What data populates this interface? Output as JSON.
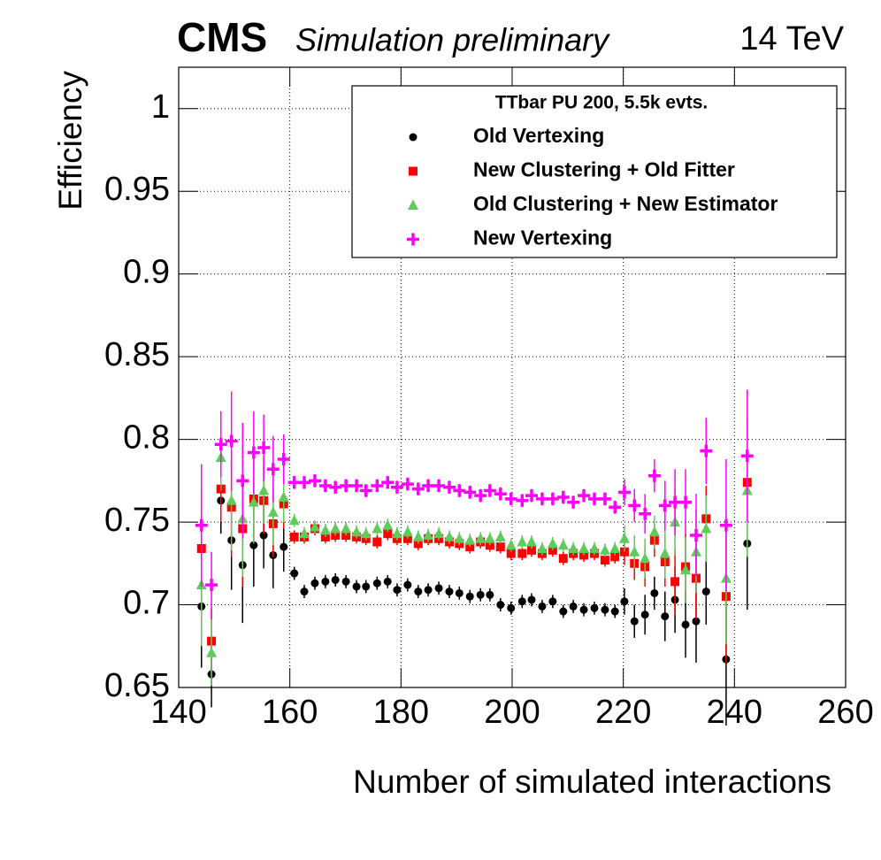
{
  "chart_data": {
    "type": "scatter",
    "title": "CMS",
    "subtitle": "Simulation preliminary",
    "annotation": "14 TeV",
    "x_label": "Number of simulated interactions",
    "y_label": "Efficiency",
    "legend_title": "TTbar PU 200, 5.5k evts.",
    "legend_position": "top-right",
    "grid": true,
    "xlim": [
      140,
      260
    ],
    "xticks": [
      140,
      160,
      180,
      200,
      220,
      240,
      260
    ],
    "ylim": [
      0.65,
      1.025
    ],
    "yticks": [
      0.65,
      0.7,
      0.75,
      0.8,
      0.85,
      0.9,
      0.95,
      1
    ],
    "x": [
      144.1,
      145.9,
      147.6,
      149.5,
      151.5,
      153.5,
      155.3,
      157.0,
      158.9,
      160.8,
      162.6,
      164.5,
      166.4,
      168.2,
      170.1,
      172.0,
      173.7,
      175.7,
      177.6,
      179.3,
      181.2,
      183.1,
      184.9,
      186.8,
      188.7,
      190.5,
      192.4,
      194.3,
      196.0,
      197.9,
      199.8,
      201.8,
      203.5,
      205.4,
      207.3,
      209.2,
      211.0,
      212.9,
      214.8,
      216.7,
      218.5,
      220.2,
      222.0,
      223.9,
      225.6,
      227.5,
      229.3,
      231.2,
      233.1,
      234.9,
      238.5,
      242.3
    ],
    "series": [
      {
        "name": "Old Vertexing",
        "color": "#000000",
        "marker": "circle",
        "values": [
          0.699,
          0.658,
          0.763,
          0.739,
          0.724,
          0.736,
          0.742,
          0.73,
          0.735,
          0.719,
          0.708,
          0.713,
          0.714,
          0.715,
          0.714,
          0.711,
          0.711,
          0.713,
          0.714,
          0.709,
          0.712,
          0.708,
          0.709,
          0.71,
          0.708,
          0.707,
          0.705,
          0.706,
          0.706,
          0.7,
          0.698,
          0.702,
          0.703,
          0.699,
          0.702,
          0.696,
          0.699,
          0.697,
          0.698,
          0.697,
          0.696,
          0.702,
          0.69,
          0.694,
          0.707,
          0.693,
          0.703,
          0.688,
          0.69,
          0.708,
          0.667,
          0.737
        ],
        "errors": [
          0.037,
          0.02,
          0.02,
          0.03,
          0.035,
          0.025,
          0.02,
          0.02,
          0.015,
          0.004,
          0.004,
          0.004,
          0.004,
          0.004,
          0.004,
          0.004,
          0.004,
          0.004,
          0.004,
          0.004,
          0.004,
          0.004,
          0.004,
          0.004,
          0.004,
          0.004,
          0.004,
          0.004,
          0.004,
          0.004,
          0.004,
          0.004,
          0.004,
          0.004,
          0.004,
          0.004,
          0.004,
          0.004,
          0.004,
          0.004,
          0.004,
          0.008,
          0.01,
          0.012,
          0.01,
          0.015,
          0.02,
          0.02,
          0.025,
          0.02,
          0.04,
          0.04
        ]
      },
      {
        "name": "New Clustering + Old Fitter",
        "color": "#ff0000",
        "marker": "square",
        "values": [
          0.734,
          0.678,
          0.77,
          0.759,
          0.746,
          0.764,
          0.763,
          0.749,
          0.761,
          0.741,
          0.741,
          0.746,
          0.741,
          0.742,
          0.742,
          0.741,
          0.74,
          0.738,
          0.743,
          0.74,
          0.74,
          0.737,
          0.74,
          0.74,
          0.738,
          0.737,
          0.735,
          0.738,
          0.736,
          0.735,
          0.731,
          0.731,
          0.733,
          0.731,
          0.733,
          0.728,
          0.731,
          0.73,
          0.731,
          0.727,
          0.729,
          0.732,
          0.725,
          0.723,
          0.739,
          0.726,
          0.714,
          0.723,
          0.716,
          0.752,
          0.705,
          0.774
        ],
        "errors": [
          0.037,
          0.02,
          0.02,
          0.03,
          0.035,
          0.025,
          0.02,
          0.02,
          0.015,
          0.004,
          0.004,
          0.004,
          0.004,
          0.004,
          0.004,
          0.004,
          0.004,
          0.004,
          0.004,
          0.004,
          0.004,
          0.004,
          0.004,
          0.004,
          0.004,
          0.004,
          0.004,
          0.004,
          0.004,
          0.004,
          0.004,
          0.004,
          0.004,
          0.004,
          0.004,
          0.004,
          0.004,
          0.004,
          0.004,
          0.004,
          0.004,
          0.008,
          0.01,
          0.012,
          0.01,
          0.015,
          0.02,
          0.02,
          0.025,
          0.02,
          0.04,
          0.04
        ]
      },
      {
        "name": "Old Clustering + New Estimator",
        "color": "#5dcc5a",
        "marker": "triangle",
        "values": [
          0.712,
          0.671,
          0.789,
          0.763,
          0.752,
          0.762,
          0.769,
          0.756,
          0.765,
          0.751,
          0.743,
          0.747,
          0.745,
          0.746,
          0.746,
          0.744,
          0.743,
          0.746,
          0.748,
          0.743,
          0.744,
          0.741,
          0.742,
          0.743,
          0.741,
          0.74,
          0.739,
          0.74,
          0.74,
          0.741,
          0.736,
          0.738,
          0.738,
          0.734,
          0.737,
          0.736,
          0.734,
          0.734,
          0.734,
          0.733,
          0.734,
          0.74,
          0.732,
          0.728,
          0.744,
          0.731,
          0.75,
          0.721,
          0.732,
          0.746,
          0.716,
          0.769
        ],
        "errors": [
          0.037,
          0.02,
          0.02,
          0.03,
          0.035,
          0.025,
          0.02,
          0.02,
          0.015,
          0.004,
          0.004,
          0.004,
          0.004,
          0.004,
          0.004,
          0.004,
          0.004,
          0.004,
          0.004,
          0.004,
          0.004,
          0.004,
          0.004,
          0.004,
          0.004,
          0.004,
          0.004,
          0.004,
          0.004,
          0.004,
          0.004,
          0.004,
          0.004,
          0.004,
          0.004,
          0.004,
          0.004,
          0.004,
          0.004,
          0.004,
          0.004,
          0.008,
          0.01,
          0.012,
          0.01,
          0.015,
          0.02,
          0.02,
          0.025,
          0.02,
          0.04,
          0.04
        ]
      },
      {
        "name": "New Vertexing",
        "color": "#ff00ff",
        "marker": "plus",
        "values": [
          0.748,
          0.712,
          0.797,
          0.799,
          0.775,
          0.792,
          0.795,
          0.782,
          0.788,
          0.774,
          0.774,
          0.775,
          0.772,
          0.771,
          0.772,
          0.772,
          0.769,
          0.772,
          0.774,
          0.771,
          0.773,
          0.77,
          0.772,
          0.772,
          0.771,
          0.769,
          0.768,
          0.766,
          0.769,
          0.767,
          0.764,
          0.763,
          0.766,
          0.764,
          0.764,
          0.765,
          0.762,
          0.766,
          0.764,
          0.764,
          0.759,
          0.768,
          0.76,
          0.755,
          0.778,
          0.76,
          0.762,
          0.762,
          0.742,
          0.793,
          0.748,
          0.79
        ],
        "errors": [
          0.037,
          0.02,
          0.02,
          0.03,
          0.035,
          0.025,
          0.02,
          0.02,
          0.015,
          0.004,
          0.004,
          0.004,
          0.004,
          0.004,
          0.004,
          0.004,
          0.004,
          0.004,
          0.004,
          0.004,
          0.004,
          0.004,
          0.004,
          0.004,
          0.004,
          0.004,
          0.004,
          0.004,
          0.004,
          0.004,
          0.004,
          0.004,
          0.004,
          0.004,
          0.004,
          0.004,
          0.004,
          0.004,
          0.004,
          0.004,
          0.004,
          0.008,
          0.01,
          0.012,
          0.01,
          0.015,
          0.02,
          0.02,
          0.025,
          0.02,
          0.04,
          0.04
        ]
      }
    ]
  }
}
